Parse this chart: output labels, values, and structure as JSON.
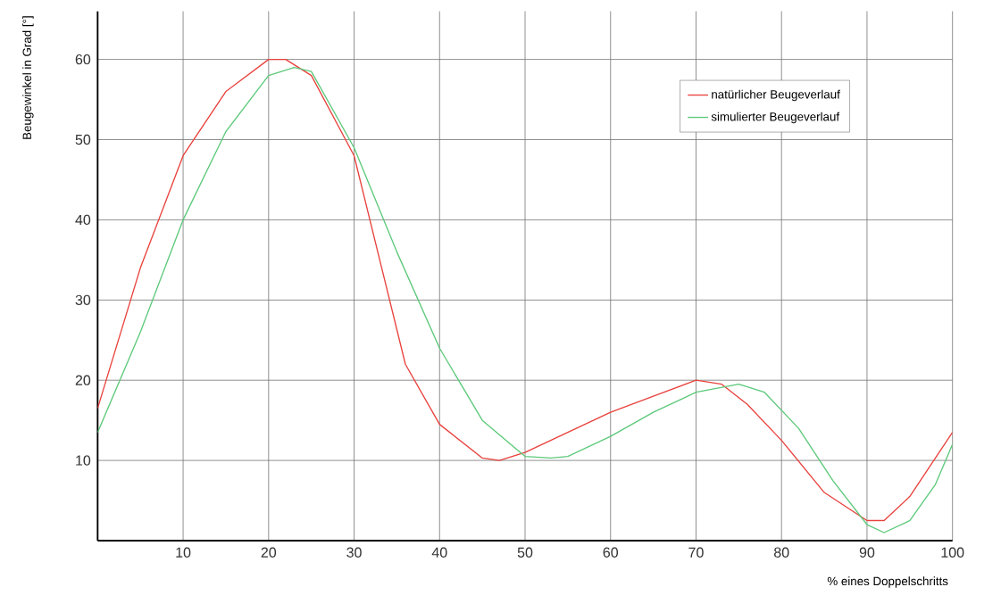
{
  "chart_data": {
    "type": "line",
    "xlabel": "% eines Doppelschritts",
    "ylabel": "Beugewinkel in Grad [°]",
    "xlim": [
      0,
      100
    ],
    "ylim": [
      0,
      66
    ],
    "xticks": [
      10,
      20,
      30,
      40,
      50,
      60,
      70,
      80,
      90,
      100
    ],
    "yticks": [
      10,
      20,
      30,
      40,
      50,
      60
    ],
    "grid": true,
    "legend": "top right",
    "marker": "none",
    "line_style": "solid",
    "series": [
      {
        "name": "natürlicher Beugeverlauf",
        "color": "#e8413c",
        "x": [
          0,
          5,
          10,
          15,
          20,
          22,
          25,
          30,
          33,
          36,
          40,
          45,
          47,
          50,
          55,
          60,
          65,
          70,
          73,
          76,
          80,
          85,
          90,
          92,
          95,
          100
        ],
        "values": [
          16.5,
          34,
          48,
          56,
          60,
          60,
          58,
          48,
          35,
          22,
          14.5,
          10.3,
          10,
          11,
          13.5,
          16,
          18,
          20,
          19.5,
          17,
          12.5,
          6,
          2.5,
          2.5,
          5.5,
          13.5
        ]
      },
      {
        "name": "simulierter Beugeverlauf",
        "color": "#5cc97a",
        "x": [
          0,
          5,
          10,
          15,
          20,
          23,
          25,
          30,
          35,
          40,
          45,
          50,
          53,
          55,
          60,
          65,
          70,
          75,
          78,
          82,
          86,
          90,
          92,
          95,
          98,
          100
        ],
        "values": [
          13.5,
          26,
          40,
          51,
          58,
          59,
          58.5,
          49,
          36,
          24,
          15,
          10.5,
          10.3,
          10.5,
          13,
          16,
          18.5,
          19.5,
          18.5,
          14,
          7.5,
          2,
          1,
          2.5,
          7,
          12
        ]
      }
    ]
  }
}
